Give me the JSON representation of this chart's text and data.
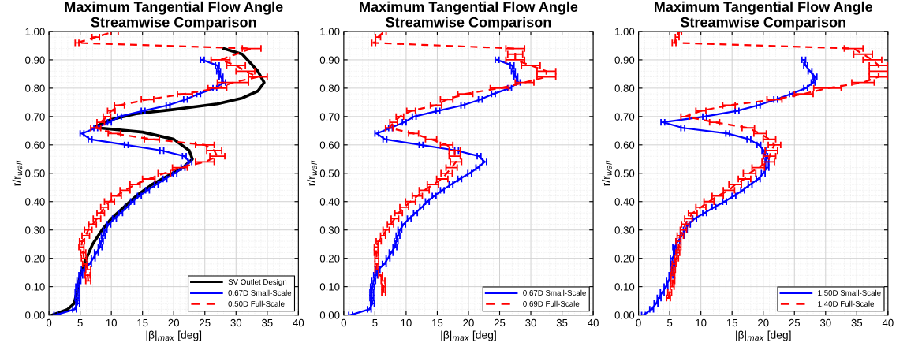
{
  "chart_data": [
    {
      "type": "line",
      "title": "Maximum Tangential Flow Angle\nStreamwise Comparison",
      "xlabel": "|β|$_{max}$ [deg]",
      "ylabel": "r/r$_{wall}$",
      "xlim": [
        0,
        40
      ],
      "xticks": [
        0,
        5,
        10,
        15,
        20,
        25,
        30,
        35,
        40
      ],
      "ylim": [
        0,
        1
      ],
      "yticks": [
        {
          "value": 0,
          "label": "0.00"
        },
        {
          "value": 0.1,
          "label": "0.10"
        },
        {
          "value": 0.2,
          "label": "0.20"
        },
        {
          "value": 0.3,
          "label": "0.30"
        },
        {
          "value": 0.4,
          "label": "0.40"
        },
        {
          "value": 0.5,
          "label": "0.50"
        },
        {
          "value": 0.6,
          "label": "0.60"
        },
        {
          "value": 0.7,
          "label": "0.70"
        },
        {
          "value": 0.8,
          "label": "0.80"
        },
        {
          "value": 0.9,
          "label": "0.90"
        },
        {
          "value": 1.0,
          "label": "1.00"
        }
      ],
      "grid": true,
      "legend": "bottom right",
      "marker": "none",
      "series": [
        {
          "name": "SV Outlet Design",
          "color": "#000000",
          "line_style": "solid",
          "x": [
            0.5,
            3,
            4,
            4.5,
            5,
            6,
            7,
            8.5,
            10,
            12,
            14,
            16.5,
            19,
            21.5,
            23,
            22.5,
            20,
            15,
            8,
            7.5,
            10,
            14,
            20,
            27,
            31,
            33.5,
            34.5,
            33.5,
            31,
            28
          ],
          "values": [
            0,
            0.02,
            0.04,
            0.08,
            0.14,
            0.2,
            0.25,
            0.3,
            0.34,
            0.38,
            0.42,
            0.46,
            0.49,
            0.52,
            0.55,
            0.58,
            0.62,
            0.645,
            0.66,
            0.665,
            0.69,
            0.71,
            0.725,
            0.745,
            0.765,
            0.79,
            0.82,
            0.86,
            0.92,
            0.94
          ]
        },
        {
          "name": "0.67D Small-Scale",
          "color": "#0000ff",
          "line_style": "solid",
          "x": [
            1.1,
            4.1,
            4.6,
            4.5,
            4.5,
            4.6,
            4.8,
            5.1,
            5.5,
            6.5,
            7.1,
            7.6,
            8.2,
            8.4,
            8.7,
            9.0,
            9.6,
            10.5,
            11.5,
            12.5,
            13.4,
            14.5,
            15.8,
            17.2,
            18.6,
            20.2,
            21.5,
            22.6,
            21.7,
            18.1,
            12.4,
            6.6,
            5.3,
            7.5,
            9.7,
            11.3,
            15.1,
            19.1,
            21.9,
            24.0,
            26.6,
            28.0,
            27.6,
            27.2,
            27.0,
            24.6
          ],
          "values": [
            0,
            0.02,
            0.04,
            0.06,
            0.08,
            0.1,
            0.12,
            0.14,
            0.16,
            0.18,
            0.2,
            0.22,
            0.24,
            0.26,
            0.28,
            0.3,
            0.32,
            0.34,
            0.36,
            0.38,
            0.4,
            0.42,
            0.44,
            0.46,
            0.48,
            0.5,
            0.52,
            0.54,
            0.56,
            0.58,
            0.6,
            0.62,
            0.64,
            0.66,
            0.68,
            0.7,
            0.72,
            0.74,
            0.76,
            0.78,
            0.8,
            0.82,
            0.84,
            0.86,
            0.88,
            0.9
          ],
          "xerrors": [
            0.3,
            0.3,
            0.3,
            0.3,
            0.3,
            0.3,
            0.3,
            0.3,
            0.3,
            0.3,
            0.3,
            0.3,
            0.3,
            0.3,
            0.3,
            0.3,
            0.3,
            0.3,
            0.3,
            0.3,
            0.3,
            0.3,
            0.3,
            0.3,
            0.3,
            0.3,
            0.3,
            0.3,
            0.3,
            0.3,
            0.3,
            0.3,
            0.3,
            0.3,
            0.3,
            0.3,
            0.3,
            0.3,
            0.3,
            0.3,
            0.3,
            0.3,
            0.3,
            0.3,
            0.3,
            0.3
          ]
        },
        {
          "name": "0.50D Full-Scale",
          "color": "#ff0000",
          "line_style": "dashed",
          "x": [
            6.3,
            6.2,
            6.3,
            5.8,
            5.6,
            5.5,
            5.2,
            5.3,
            5.9,
            6.3,
            7.0,
            7.7,
            8.3,
            8.9,
            9.7,
            10.8,
            12.2,
            13.8,
            16.0,
            18.5,
            21.0,
            25.0,
            27.0,
            26.5,
            25.0,
            16.5,
            10.5,
            7.5,
            8.3,
            9.3,
            10.0,
            11.3,
            15.8,
            21.8,
            27.0,
            29.5,
            33.5,
            31.5,
            30.0,
            27.5,
            32.5,
            4.5,
            7.5,
            10.5
          ],
          "values": [
            0.12,
            0.14,
            0.16,
            0.18,
            0.2,
            0.22,
            0.24,
            0.26,
            0.28,
            0.3,
            0.32,
            0.34,
            0.36,
            0.38,
            0.4,
            0.42,
            0.44,
            0.46,
            0.48,
            0.5,
            0.52,
            0.54,
            0.56,
            0.58,
            0.6,
            0.62,
            0.64,
            0.66,
            0.68,
            0.7,
            0.72,
            0.74,
            0.76,
            0.78,
            0.8,
            0.82,
            0.84,
            0.86,
            0.88,
            0.9,
            0.94,
            0.96,
            0.98,
            1.0
          ],
          "xerrors": [
            0.4,
            0.4,
            0.4,
            0.4,
            0.4,
            0.4,
            0.4,
            0.4,
            0.6,
            0.6,
            0.6,
            0.6,
            0.6,
            0.6,
            0.8,
            0.8,
            0.8,
            0.8,
            1.0,
            1.0,
            1.2,
            1.5,
            1.2,
            1.2,
            1.5,
            1.2,
            1.0,
            0.8,
            0.6,
            0.6,
            0.6,
            0.8,
            1.0,
            1.2,
            1.5,
            2.5,
            1.5,
            1.5,
            1.5,
            1.5,
            1.5,
            0.3,
            0.6,
            0.6
          ]
        }
      ]
    },
    {
      "type": "line",
      "title": "Maximum Tangential Flow Angle\nStreamwise Comparison",
      "xlabel": "|β|$_{max}$ [deg]",
      "ylabel": "r/r$_{wall}$",
      "xlim": [
        0,
        40
      ],
      "xticks": [
        0,
        5,
        10,
        15,
        20,
        25,
        30,
        35,
        40
      ],
      "ylim": [
        0,
        1
      ],
      "yticks": [
        {
          "value": 0,
          "label": "0.00"
        },
        {
          "value": 0.1,
          "label": "0.10"
        },
        {
          "value": 0.2,
          "label": "0.20"
        },
        {
          "value": 0.3,
          "label": "0.30"
        },
        {
          "value": 0.4,
          "label": "0.40"
        },
        {
          "value": 0.5,
          "label": "0.50"
        },
        {
          "value": 0.6,
          "label": "0.60"
        },
        {
          "value": 0.7,
          "label": "0.70"
        },
        {
          "value": 0.8,
          "label": "0.80"
        },
        {
          "value": 0.9,
          "label": "0.90"
        },
        {
          "value": 1.0,
          "label": "1.00"
        }
      ],
      "grid": true,
      "legend": "bottom right",
      "marker": "none",
      "series": [
        {
          "name": "0.67D Small-Scale",
          "color": "#0000ff",
          "line_style": "solid",
          "x": [
            1.1,
            4.1,
            4.6,
            4.5,
            4.5,
            4.6,
            4.8,
            5.1,
            5.5,
            6.5,
            7.1,
            7.6,
            8.2,
            8.4,
            8.7,
            9.0,
            9.6,
            10.5,
            11.5,
            12.5,
            13.4,
            14.5,
            15.8,
            17.2,
            18.6,
            20.2,
            21.5,
            22.6,
            21.7,
            18.1,
            12.4,
            6.6,
            5.3,
            7.5,
            9.7,
            11.3,
            15.1,
            19.1,
            21.9,
            24.0,
            26.6,
            28.0,
            27.6,
            27.2,
            27.0,
            24.6
          ],
          "values": [
            0,
            0.02,
            0.04,
            0.06,
            0.08,
            0.1,
            0.12,
            0.14,
            0.16,
            0.18,
            0.2,
            0.22,
            0.24,
            0.26,
            0.28,
            0.3,
            0.32,
            0.34,
            0.36,
            0.38,
            0.4,
            0.42,
            0.44,
            0.46,
            0.48,
            0.5,
            0.52,
            0.54,
            0.56,
            0.58,
            0.6,
            0.62,
            0.64,
            0.66,
            0.68,
            0.7,
            0.72,
            0.74,
            0.76,
            0.78,
            0.8,
            0.82,
            0.84,
            0.86,
            0.88,
            0.9
          ],
          "xerrors": [
            0.3,
            0.3,
            0.3,
            0.3,
            0.3,
            0.3,
            0.3,
            0.3,
            0.3,
            0.3,
            0.3,
            0.3,
            0.3,
            0.3,
            0.3,
            0.3,
            0.3,
            0.3,
            0.3,
            0.3,
            0.3,
            0.3,
            0.3,
            0.3,
            0.3,
            0.3,
            0.3,
            0.3,
            0.3,
            0.3,
            0.3,
            0.3,
            0.3,
            0.3,
            0.3,
            0.3,
            0.3,
            0.3,
            0.3,
            0.3,
            0.3,
            0.3,
            0.3,
            0.3,
            0.3,
            0.3
          ]
        },
        {
          "name": "0.69D Full-Scale",
          "color": "#ff0000",
          "line_style": "dashed",
          "x": [
            6.4,
            6.4,
            6.3,
            5.9,
            5.3,
            5.3,
            5.3,
            5.2,
            5.2,
            5.6,
            6.3,
            6.8,
            7.5,
            8.2,
            8.8,
            9.7,
            10.7,
            11.8,
            12.9,
            14.3,
            15.8,
            16.5,
            17.3,
            18.0,
            17.8,
            17.8,
            16.5,
            14.0,
            11.2,
            7.3,
            8.0,
            9.0,
            10.8,
            14.8,
            16.5,
            19.5,
            25.0,
            29.0,
            32.5,
            32.5,
            30.0,
            27.5,
            27.5,
            27.5,
            4.8,
            5.5,
            6.5
          ],
          "values": [
            0.08,
            0.1,
            0.12,
            0.14,
            0.16,
            0.18,
            0.2,
            0.22,
            0.24,
            0.26,
            0.28,
            0.3,
            0.32,
            0.34,
            0.36,
            0.38,
            0.4,
            0.42,
            0.44,
            0.46,
            0.48,
            0.5,
            0.52,
            0.54,
            0.56,
            0.58,
            0.6,
            0.62,
            0.64,
            0.66,
            0.68,
            0.7,
            0.72,
            0.74,
            0.76,
            0.78,
            0.8,
            0.82,
            0.84,
            0.86,
            0.88,
            0.9,
            0.92,
            0.94,
            0.96,
            0.98,
            1.0
          ],
          "xerrors": [
            0.3,
            0.3,
            0.3,
            0.3,
            0.3,
            0.3,
            0.3,
            0.3,
            0.3,
            0.4,
            0.4,
            0.5,
            0.5,
            0.6,
            0.6,
            0.7,
            0.8,
            0.8,
            0.8,
            0.9,
            0.9,
            0.9,
            0.9,
            0.9,
            0.9,
            0.9,
            1.0,
            0.9,
            0.8,
            0.6,
            0.6,
            0.6,
            0.7,
            0.9,
            1.0,
            1.2,
            1.5,
            1.5,
            1.5,
            1.5,
            1.5,
            1.5,
            1.2,
            1.5,
            0.3,
            0.4,
            0.3
          ]
        }
      ]
    },
    {
      "type": "line",
      "title": "Maximum Tangential Flow Angle\nStreamwise Comparison",
      "xlabel": "|β|$_{max}$ [deg]",
      "ylabel": "r/r$_{wall}$",
      "xlim": [
        0,
        40
      ],
      "xticks": [
        0,
        5,
        10,
        15,
        20,
        25,
        30,
        35,
        40
      ],
      "ylim": [
        0,
        1
      ],
      "yticks": [
        {
          "value": 0,
          "label": "0.00"
        },
        {
          "value": 0.1,
          "label": "0.10"
        },
        {
          "value": 0.2,
          "label": "0.20"
        },
        {
          "value": 0.3,
          "label": "0.30"
        },
        {
          "value": 0.4,
          "label": "0.40"
        },
        {
          "value": 0.5,
          "label": "0.50"
        },
        {
          "value": 0.6,
          "label": "0.60"
        },
        {
          "value": 0.7,
          "label": "0.70"
        },
        {
          "value": 0.8,
          "label": "0.80"
        },
        {
          "value": 0.9,
          "label": "0.90"
        },
        {
          "value": 1.0,
          "label": "1.00"
        }
      ],
      "grid": true,
      "legend": "bottom right",
      "marker": "none",
      "series": [
        {
          "name": "1.50D Small-Scale",
          "color": "#0000ff",
          "line_style": "solid",
          "x": [
            0.8,
            2.1,
            2.8,
            3.3,
            3.8,
            4.4,
            4.8,
            5.2,
            5.4,
            5.5,
            5.4,
            5.9,
            5.8,
            6.3,
            7.0,
            7.5,
            8.0,
            9.0,
            10.6,
            12.1,
            13.8,
            15.3,
            16.7,
            17.9,
            19.2,
            20.0,
            20.6,
            20.6,
            20.4,
            20.1,
            19.3,
            17.7,
            14.3,
            7.1,
            3.9,
            10.6,
            15.8,
            19.2,
            22.0,
            24.5,
            26.8,
            28.0,
            28.3,
            27.5,
            26.8,
            26.5
          ],
          "values": [
            0,
            0.02,
            0.04,
            0.06,
            0.08,
            0.1,
            0.12,
            0.14,
            0.16,
            0.18,
            0.2,
            0.22,
            0.24,
            0.26,
            0.28,
            0.3,
            0.32,
            0.34,
            0.36,
            0.38,
            0.4,
            0.42,
            0.44,
            0.46,
            0.48,
            0.5,
            0.52,
            0.54,
            0.56,
            0.58,
            0.6,
            0.62,
            0.64,
            0.66,
            0.68,
            0.7,
            0.72,
            0.74,
            0.76,
            0.78,
            0.8,
            0.82,
            0.84,
            0.86,
            0.88,
            0.9
          ],
          "xerrors": [
            0.3,
            0.3,
            0.3,
            0.3,
            0.3,
            0.3,
            0.3,
            0.3,
            0.3,
            0.3,
            0.3,
            0.3,
            0.3,
            0.3,
            0.3,
            0.3,
            0.3,
            0.3,
            0.3,
            0.3,
            0.3,
            0.3,
            0.3,
            0.3,
            0.3,
            0.3,
            0.3,
            0.3,
            0.3,
            0.3,
            0.3,
            0.3,
            0.3,
            0.3,
            0.3,
            0.3,
            0.3,
            0.3,
            0.3,
            0.3,
            0.3,
            0.3,
            0.3,
            0.3,
            0.3,
            0.3
          ]
        },
        {
          "name": "1.40D Full-Scale",
          "color": "#ff0000",
          "line_style": "dashed",
          "x": [
            4.8,
            5.0,
            5.4,
            5.5,
            5.5,
            5.6,
            5.7,
            6.1,
            6.3,
            6.5,
            6.4,
            6.7,
            7.2,
            7.5,
            8.0,
            8.7,
            10.0,
            11.3,
            12.7,
            14.5,
            15.5,
            17.0,
            17.8,
            19.2,
            20.8,
            21.0,
            21.3,
            21.8,
            21.0,
            19.5,
            17.6,
            12.2,
            7.5,
            10.0,
            14.5,
            21.8,
            26.5,
            30.3,
            36.0,
            38.5,
            38.5,
            38.5,
            37.5,
            36.0,
            34.5,
            5.7,
            6.2,
            6.6
          ],
          "values": [
            0.06,
            0.08,
            0.1,
            0.12,
            0.14,
            0.16,
            0.18,
            0.2,
            0.22,
            0.24,
            0.26,
            0.28,
            0.3,
            0.32,
            0.34,
            0.36,
            0.38,
            0.4,
            0.42,
            0.44,
            0.46,
            0.48,
            0.5,
            0.52,
            0.54,
            0.56,
            0.58,
            0.6,
            0.62,
            0.64,
            0.66,
            0.68,
            0.7,
            0.72,
            0.74,
            0.76,
            0.78,
            0.8,
            0.82,
            0.84,
            0.86,
            0.88,
            0.9,
            0.92,
            0.94,
            0.96,
            0.98,
            1.0
          ],
          "xerrors": [
            0.3,
            0.3,
            0.3,
            0.3,
            0.3,
            0.3,
            0.3,
            0.3,
            0.3,
            0.3,
            0.4,
            0.5,
            0.5,
            0.6,
            0.6,
            0.7,
            0.8,
            0.8,
            0.9,
            0.9,
            1.0,
            1.0,
            1.0,
            1.0,
            1.0,
            1.0,
            1.0,
            1.0,
            1.0,
            1.0,
            1.0,
            0.8,
            0.7,
            0.8,
            1.0,
            1.2,
            1.5,
            2.2,
            1.8,
            1.5,
            1.5,
            1.5,
            1.5,
            1.5,
            1.5,
            0.3,
            0.3,
            0.3
          ]
        }
      ]
    }
  ]
}
